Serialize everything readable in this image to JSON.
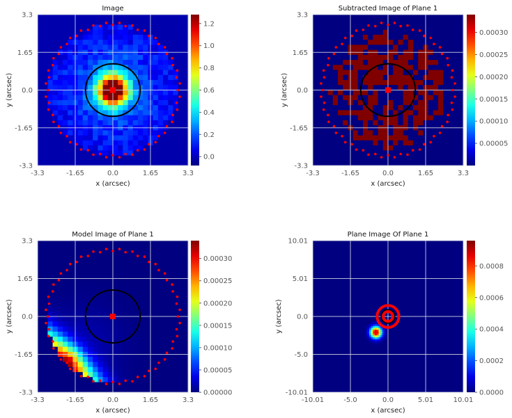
{
  "figure": {
    "colormap": "jet",
    "grid_color": "#d8dce6",
    "critical_curve_color": "#000000",
    "mask_point_color": "#ff0000"
  },
  "chart_data": [
    {
      "type": "heatmap",
      "title": "Image",
      "xlabel": "x (arcsec)",
      "ylabel": "y (arcsec)",
      "xlim": [
        -3.3,
        3.3
      ],
      "ylim": [
        -3.3,
        3.3
      ],
      "xticks": [
        "-3.3",
        "-1.65",
        "0.0",
        "1.65",
        "3.3"
      ],
      "yticks": [
        "-3.3",
        "-1.65",
        "0.0",
        "1.65",
        "3.3"
      ],
      "colorbar_ticks": [
        "0.0",
        "0.2",
        "0.4",
        "0.6",
        "0.8",
        "1.0",
        "1.2"
      ],
      "colorbar_range": [
        -0.08,
        1.28
      ],
      "grid": true,
      "field": "lens_light",
      "mask_radius": 2.9,
      "critical_curve": {
        "cx": 0.0,
        "cy": 0.0,
        "rx": 1.2,
        "ry": 1.15
      },
      "centre_marker": {
        "x": 0.0,
        "y": 0.0
      }
    },
    {
      "type": "heatmap",
      "title": "Subtracted Image of Plane 1",
      "xlabel": "x (arcsec)",
      "ylabel": "y (arcsec)",
      "xlim": [
        -3.3,
        3.3
      ],
      "ylim": [
        -3.3,
        3.3
      ],
      "xticks": [
        "-3.3",
        "-1.65",
        "0.0",
        "1.65",
        "3.3"
      ],
      "yticks": [
        "-3.3",
        "-1.65",
        "0.0",
        "1.65",
        "3.3"
      ],
      "colorbar_ticks": [
        "0.00005",
        "0.00010",
        "0.00015",
        "0.00020",
        "0.00025",
        "0.00030"
      ],
      "colorbar_range": [
        0.0,
        0.00034
      ],
      "grid": true,
      "field": "subtracted",
      "mask_radius": 2.9,
      "critical_curve": {
        "cx": 0.0,
        "cy": 0.0,
        "rx": 1.2,
        "ry": 1.15
      },
      "centre_marker": {
        "x": 0.0,
        "y": 0.0
      }
    },
    {
      "type": "heatmap",
      "title": "Model Image of Plane 1",
      "xlabel": "x (arcsec)",
      "ylabel": "y (arcsec)",
      "xlim": [
        -3.3,
        3.3
      ],
      "ylim": [
        -3.3,
        3.3
      ],
      "xticks": [
        "-3.3",
        "-1.65",
        "0.0",
        "1.65",
        "3.3"
      ],
      "yticks": [
        "-3.3",
        "-1.65",
        "0.0",
        "1.65",
        "3.3"
      ],
      "colorbar_ticks": [
        "0.00000",
        "0.00005",
        "0.00010",
        "0.00015",
        "0.00020",
        "0.00025",
        "0.00030"
      ],
      "colorbar_range": [
        0.0,
        0.00034
      ],
      "grid": true,
      "field": "model",
      "mask_radius": 2.9,
      "critical_curve": {
        "cx": 0.0,
        "cy": 0.0,
        "rx": 1.2,
        "ry": 1.15
      },
      "centre_marker": {
        "x": 0.0,
        "y": 0.0
      }
    },
    {
      "type": "heatmap",
      "title": "Plane Image Of Plane 1",
      "xlabel": "x (arcsec)",
      "ylabel": "y (arcsec)",
      "xlim": [
        -10.01,
        10.01
      ],
      "ylim": [
        -10.01,
        10.01
      ],
      "xticks": [
        "-10.01",
        "-5.0",
        "0.0",
        "5.01",
        "10.01"
      ],
      "yticks": [
        "-10.01",
        "-5.0",
        "0.0",
        "5.01",
        "10.01"
      ],
      "colorbar_ticks": [
        "0.0000",
        "0.0002",
        "0.0004",
        "0.0006",
        "0.0008"
      ],
      "colorbar_range": [
        0.0,
        0.00096
      ],
      "grid": true,
      "field": "source",
      "source_centre": {
        "x": -1.6,
        "y": -2.1
      },
      "caustic_circles": [
        {
          "cx": 0.0,
          "cy": 0.0,
          "r": 1.45
        },
        {
          "cx": 0.0,
          "cy": 0.0,
          "r": 0.65
        }
      ],
      "caustic_curve": {
        "cx": 0.0,
        "cy": 0.0,
        "r": 0.9
      }
    }
  ]
}
